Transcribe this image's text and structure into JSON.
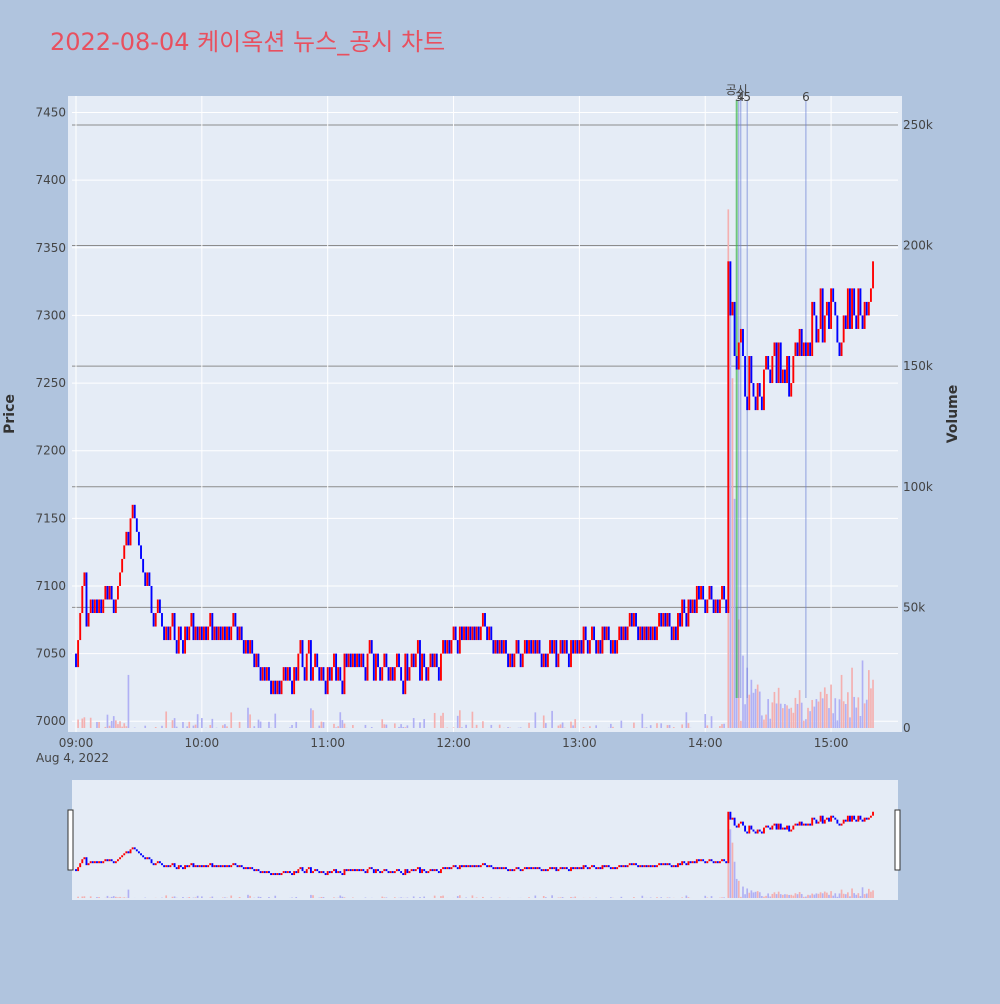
{
  "chart_data": {
    "type": "candlestick",
    "title": "2022-08-04 케이옥션 뉴스_공시 차트",
    "date_label": "Aug 4, 2022",
    "y_price_label": "Price",
    "y_volume_label": "Volume",
    "price_range": [
      6995,
      7460
    ],
    "volume_range": [
      0,
      262000
    ],
    "price_ticks": [
      7000,
      7050,
      7100,
      7150,
      7200,
      7250,
      7300,
      7350,
      7400,
      7450
    ],
    "volume_ticks": [
      {
        "value": 0,
        "label": "0"
      },
      {
        "value": 50000,
        "label": "50k"
      },
      {
        "value": 100000,
        "label": "100k"
      },
      {
        "value": 150000,
        "label": "150k"
      },
      {
        "value": 200000,
        "label": "200k"
      },
      {
        "value": 250000,
        "label": "250k"
      }
    ],
    "time_range": [
      "09:00",
      "15:30"
    ],
    "time_ticks": [
      "09:00",
      "10:00",
      "11:00",
      "12:00",
      "13:00",
      "14:00",
      "15:00"
    ],
    "colors": {
      "up": "#ff0000",
      "down": "#0000ff",
      "vol_up": "#f4b0b0",
      "vol_down": "#b0b0f4",
      "event_line": "#6a7fd6",
      "disclosure_line": "#3ab54a",
      "title": "#e8505f"
    },
    "events": [
      {
        "time": "14:15",
        "label": "공시"
      },
      {
        "time": "14:16",
        "label": "3"
      },
      {
        "time": "14:16",
        "label": "4"
      },
      {
        "time": "14:20",
        "label": "5"
      },
      {
        "time": "14:48",
        "label": "6"
      }
    ],
    "price_keyframes": [
      [
        "09:00",
        7050
      ],
      [
        "09:03",
        7100
      ],
      [
        "09:05",
        7080
      ],
      [
        "09:10",
        7085
      ],
      [
        "09:15",
        7095
      ],
      [
        "09:20",
        7090
      ],
      [
        "09:24",
        7130
      ],
      [
        "09:28",
        7158
      ],
      [
        "09:32",
        7110
      ],
      [
        "09:38",
        7080
      ],
      [
        "09:45",
        7062
      ],
      [
        "09:55",
        7065
      ],
      [
        "10:05",
        7065
      ],
      [
        "10:15",
        7065
      ],
      [
        "10:25",
        7050
      ],
      [
        "10:32",
        7025
      ],
      [
        "10:45",
        7042
      ],
      [
        "10:55",
        7040
      ],
      [
        "11:00",
        7030
      ],
      [
        "11:05",
        7040
      ],
      [
        "11:15",
        7042
      ],
      [
        "11:25",
        7040
      ],
      [
        "11:35",
        7040
      ],
      [
        "11:45",
        7038
      ],
      [
        "11:55",
        7052
      ],
      [
        "12:05",
        7062
      ],
      [
        "12:15",
        7065
      ],
      [
        "12:25",
        7045
      ],
      [
        "12:35",
        7052
      ],
      [
        "12:45",
        7042
      ],
      [
        "12:55",
        7055
      ],
      [
        "13:05",
        7062
      ],
      [
        "13:15",
        7058
      ],
      [
        "13:25",
        7070
      ],
      [
        "13:35",
        7065
      ],
      [
        "13:45",
        7072
      ],
      [
        "13:55",
        7090
      ],
      [
        "14:05",
        7092
      ],
      [
        "14:09",
        7085
      ],
      [
        "14:10",
        7085
      ],
      [
        "14:11",
        7350
      ],
      [
        "14:13",
        7290
      ],
      [
        "14:15",
        7255
      ],
      [
        "14:17",
        7285
      ],
      [
        "14:20",
        7250
      ],
      [
        "14:25",
        7240
      ],
      [
        "14:30",
        7255
      ],
      [
        "14:35",
        7260
      ],
      [
        "14:40",
        7245
      ],
      [
        "14:45",
        7275
      ],
      [
        "14:50",
        7285
      ],
      [
        "14:55",
        7295
      ],
      [
        "15:00",
        7305
      ],
      [
        "15:05",
        7300
      ],
      [
        "15:10",
        7305
      ],
      [
        "15:15",
        7300
      ],
      [
        "15:18",
        7310
      ],
      [
        "15:20",
        7348
      ]
    ],
    "volume_spikes": [
      [
        "14:11",
        215000
      ],
      [
        "14:12",
        180000
      ],
      [
        "14:13",
        145000
      ],
      [
        "14:14",
        95000
      ],
      [
        "14:15",
        50000
      ],
      [
        "14:16",
        45000
      ],
      [
        "14:18",
        30000
      ],
      [
        "14:20",
        25000
      ],
      [
        "14:22",
        20000
      ],
      [
        "14:25",
        18000
      ],
      [
        "14:30",
        12000
      ],
      [
        "14:40",
        8000
      ],
      [
        "14:55",
        15000
      ],
      [
        "15:00",
        18000
      ],
      [
        "15:05",
        22000
      ],
      [
        "15:10",
        25000
      ],
      [
        "15:15",
        28000
      ],
      [
        "15:18",
        24000
      ],
      [
        "15:20",
        20000
      ],
      [
        "09:25",
        22000
      ]
    ]
  }
}
